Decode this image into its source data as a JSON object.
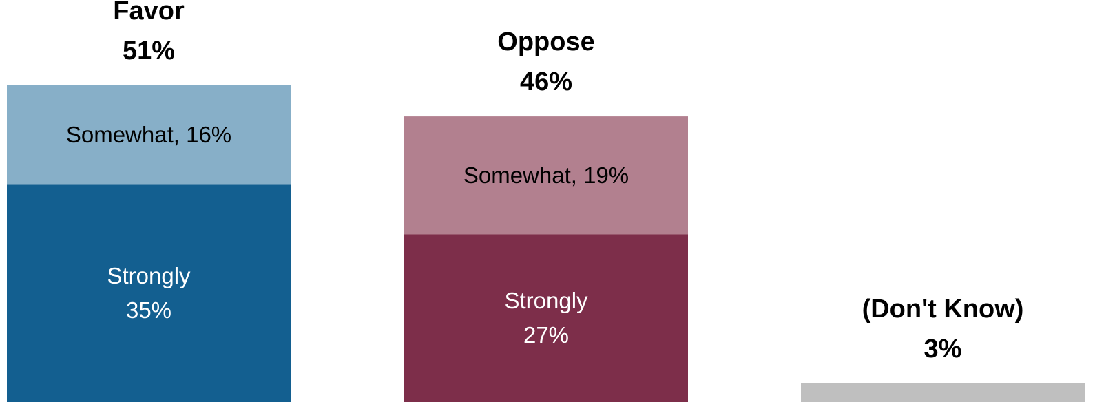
{
  "chart_data": {
    "type": "bar",
    "stacked": true,
    "grid": false,
    "legend": "none",
    "ylim": [
      0,
      51
    ],
    "groups": [
      {
        "label": "Favor",
        "total_label": "51%",
        "segments": [
          {
            "name": "Strongly",
            "value": 35,
            "label_lines": [
              "Strongly",
              "35%"
            ],
            "color": "#135f90",
            "text_color": "#ffffff"
          },
          {
            "name": "Somewhat",
            "value": 16,
            "label_lines": [
              "Somewhat, 16%"
            ],
            "color": "#87afc8",
            "text_color": "#000000"
          }
        ]
      },
      {
        "label": "Oppose",
        "total_label": "46%",
        "segments": [
          {
            "name": "Strongly",
            "value": 27,
            "label_lines": [
              "Strongly",
              "27%"
            ],
            "color": "#7d2e4a",
            "text_color": "#ffffff"
          },
          {
            "name": "Somewhat",
            "value": 19,
            "label_lines": [
              "Somewhat, 19%"
            ],
            "color": "#b2808f",
            "text_color": "#000000"
          }
        ]
      },
      {
        "label": "(Don't Know)",
        "total_label": "3%",
        "segments": [
          {
            "name": "Don't Know",
            "value": 3,
            "label_lines": [],
            "color": "#bfbfbf",
            "text_color": "#000000"
          }
        ]
      }
    ]
  }
}
